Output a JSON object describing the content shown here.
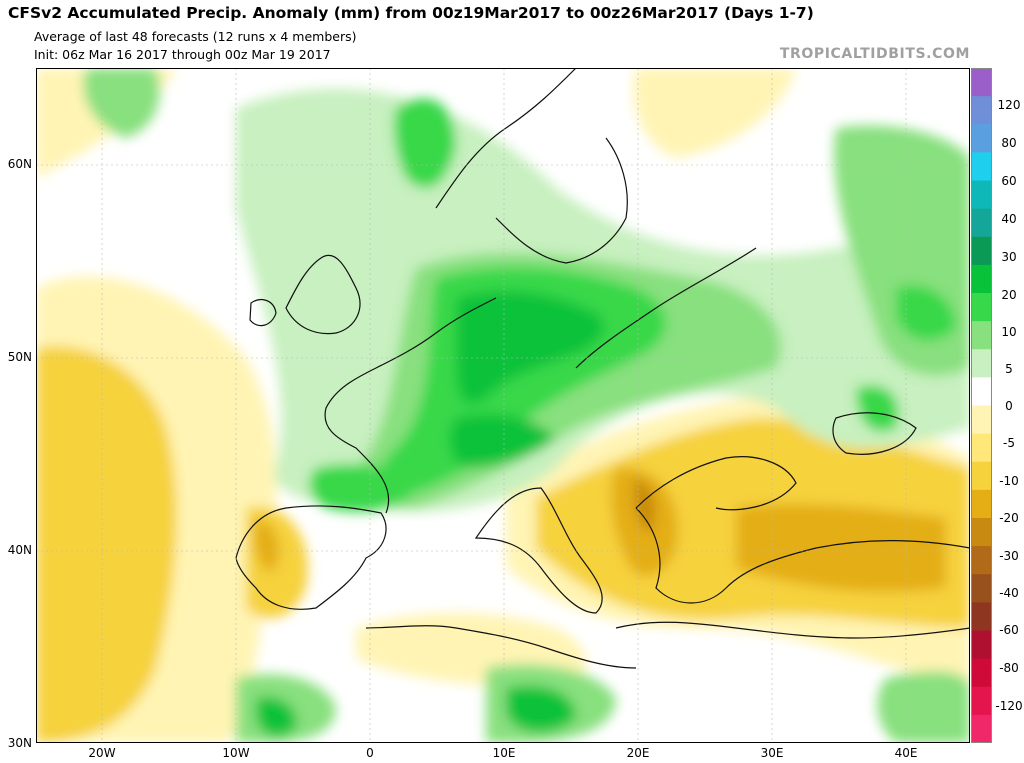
{
  "header": {
    "title": "CFSv2 Accumulated Precip. Anomaly (mm) from 00z19Mar2017 to 00z26Mar2017 (Days 1-7)",
    "subtitle1": "Average of last 48 forecasts (12 runs x 4 members)",
    "subtitle2": "Init: 06z Mar 16 2017 through 00z Mar 19 2017",
    "brand": "TROPICALTIDBITS.COM"
  },
  "axes": {
    "lat_labels": [
      "60N",
      "50N",
      "40N",
      "30N"
    ],
    "lon_labels": [
      "20W",
      "10W",
      "0",
      "10E",
      "20E",
      "30E",
      "40E"
    ]
  },
  "colorbar": {
    "colors": [
      "#9a5fc8",
      "#6f8fd8",
      "#5aa0e0",
      "#1fd0ee",
      "#0fb8b8",
      "#15a69a",
      "#0b9a55",
      "#08c23a",
      "#37d84a",
      "#88e07e",
      "#c8f0c0",
      "#ffffff",
      "#fff4b4",
      "#ffe77a",
      "#f6d23c",
      "#e4ae14",
      "#c88a10",
      "#b06a18",
      "#98501c",
      "#8e3620",
      "#b01030",
      "#d00a38",
      "#e4144c",
      "#f0286a"
    ],
    "labels": [
      "120",
      "80",
      "60",
      "40",
      "30",
      "20",
      "10",
      "5",
      "0",
      "-5",
      "-10",
      "-20",
      "-30",
      "-40",
      "-60",
      "-80",
      "-120"
    ]
  },
  "palette": {
    "ocean_base": "#ffffff",
    "wet_light": "#c8f0c0",
    "wet_mid": "#88e07e",
    "wet_strong": "#37d84a",
    "wet_core": "#08c23a",
    "dry_light": "#fff4b4",
    "dry_mid": "#f6d23c",
    "dry_strong": "#e4ae14",
    "dry_core": "#c88a10"
  }
}
